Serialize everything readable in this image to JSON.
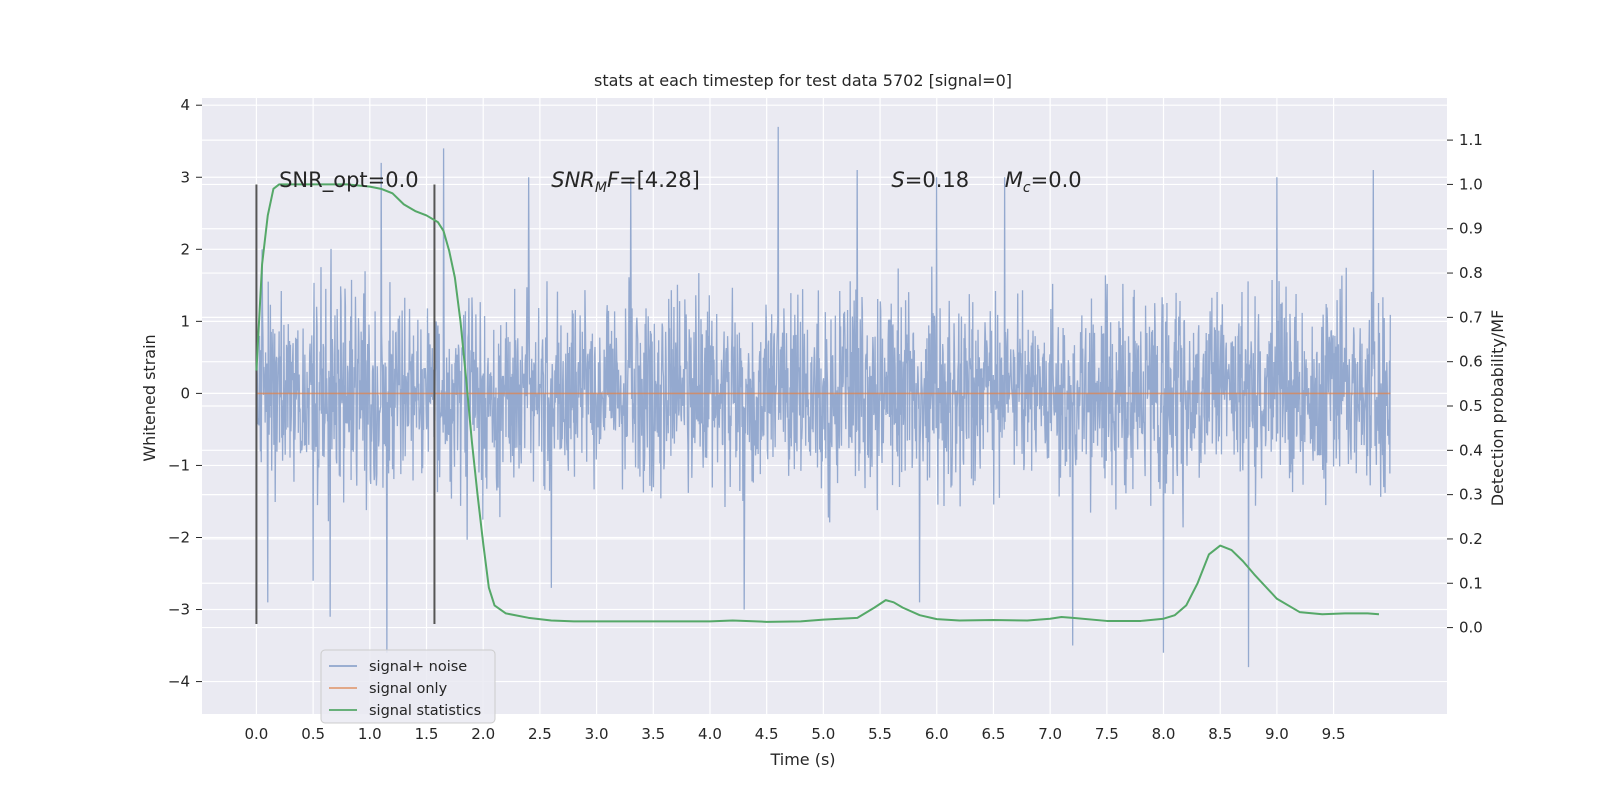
{
  "chart_data": {
    "type": "line",
    "title": "stats at each timestep for test data 5702 [signal=0]",
    "xlabel": "Time (s)",
    "ylabel": "Whitened strain",
    "y2label": "Detection probability/MF",
    "xlim": [
      -0.48,
      10.5
    ],
    "ylim": [
      -4.45,
      4.1
    ],
    "y2lim": [
      -0.195,
      1.195
    ],
    "xticks": [
      "0.0",
      "0.5",
      "1.0",
      "1.5",
      "2.0",
      "2.5",
      "3.0",
      "3.5",
      "4.0",
      "4.5",
      "5.0",
      "5.5",
      "6.0",
      "6.5",
      "7.0",
      "7.5",
      "8.0",
      "8.5",
      "9.0",
      "9.5"
    ],
    "yticks": [
      "−4",
      "−3",
      "−2",
      "−1",
      "0",
      "1",
      "2",
      "3",
      "4"
    ],
    "y2ticks": [
      "0.0",
      "0.1",
      "0.2",
      "0.3",
      "0.4",
      "0.5",
      "0.6",
      "0.7",
      "0.8",
      "0.9",
      "1.0",
      "1.1"
    ],
    "grid": true,
    "legend_position": "lower-left",
    "colors": {
      "background": "#eaeaf2",
      "grid": "#ffffff",
      "noise": "#8fa5cc",
      "signal_only": "#dd8452",
      "statistics": "#55a868",
      "marker": "#555555"
    },
    "series": [
      {
        "name": "signal+ noise",
        "axis": "left",
        "description_level": "noise band spanning roughly -1.5 to 1.7 with spikes up to 3.7 and down to -3.8",
        "x_range": [
          0.0,
          10.0
        ],
        "spikes": [
          [
            0.05,
            2.0
          ],
          [
            0.1,
            -2.9
          ],
          [
            0.5,
            -2.6
          ],
          [
            0.65,
            -3.1
          ],
          [
            1.1,
            3.2
          ],
          [
            1.15,
            -3.6
          ],
          [
            1.65,
            3.4
          ],
          [
            2.4,
            3.0
          ],
          [
            2.6,
            -2.7
          ],
          [
            3.3,
            3.0
          ],
          [
            4.3,
            -3.0
          ],
          [
            4.6,
            3.7
          ],
          [
            5.3,
            3.1
          ],
          [
            5.85,
            -2.9
          ],
          [
            6.0,
            3.0
          ],
          [
            6.6,
            3.0
          ],
          [
            7.2,
            -3.5
          ],
          [
            8.0,
            -3.6
          ],
          [
            8.75,
            -3.8
          ],
          [
            9.0,
            3.0
          ],
          [
            9.85,
            3.1
          ]
        ]
      },
      {
        "name": "signal only",
        "axis": "left",
        "x": [
          0.0,
          10.0
        ],
        "y": [
          0.0,
          0.0
        ]
      },
      {
        "name": "signal statistics",
        "axis": "right",
        "x": [
          0.0,
          0.05,
          0.1,
          0.15,
          0.2,
          0.3,
          0.5,
          0.8,
          1.0,
          1.1,
          1.2,
          1.3,
          1.4,
          1.5,
          1.6,
          1.65,
          1.7,
          1.75,
          1.8,
          1.85,
          1.9,
          1.95,
          2.0,
          2.05,
          2.1,
          2.2,
          2.4,
          2.6,
          2.8,
          3.0,
          3.5,
          4.0,
          4.2,
          4.5,
          4.8,
          5.0,
          5.3,
          5.45,
          5.55,
          5.62,
          5.7,
          5.85,
          6.0,
          6.2,
          6.5,
          6.8,
          7.0,
          7.1,
          7.2,
          7.5,
          7.8,
          8.0,
          8.1,
          8.2,
          8.3,
          8.4,
          8.5,
          8.6,
          8.7,
          8.8,
          9.0,
          9.2,
          9.4,
          9.6,
          9.8,
          9.9
        ],
        "y": [
          0.58,
          0.82,
          0.93,
          0.99,
          1.0,
          1.0,
          1.0,
          1.0,
          0.995,
          0.99,
          0.98,
          0.955,
          0.94,
          0.93,
          0.915,
          0.895,
          0.85,
          0.79,
          0.69,
          0.56,
          0.42,
          0.3,
          0.19,
          0.09,
          0.05,
          0.032,
          0.022,
          0.016,
          0.014,
          0.014,
          0.014,
          0.014,
          0.016,
          0.013,
          0.014,
          0.018,
          0.022,
          0.045,
          0.062,
          0.057,
          0.045,
          0.028,
          0.019,
          0.016,
          0.017,
          0.016,
          0.02,
          0.024,
          0.022,
          0.015,
          0.015,
          0.02,
          0.028,
          0.05,
          0.1,
          0.165,
          0.185,
          0.175,
          0.15,
          0.12,
          0.065,
          0.035,
          0.03,
          0.032,
          0.032,
          0.03
        ]
      }
    ],
    "vertical_markers": [
      {
        "x": 0.0,
        "y": [
          -3.2,
          2.9
        ]
      },
      {
        "x": 1.57,
        "y": [
          -3.2,
          2.9
        ]
      }
    ],
    "annotations": [
      {
        "x": 0.2,
        "y": 2.95,
        "text": "SNR_opt=0.0"
      },
      {
        "x": 2.6,
        "y": 2.95,
        "text": "=[4.28]",
        "math_base": "SNR",
        "math_sub": "M",
        "math_tail": "F"
      },
      {
        "x": 5.6,
        "y": 2.95,
        "text": "=0.18",
        "math_base": "S"
      },
      {
        "x": 6.6,
        "y": 2.95,
        "text": "=0.0",
        "math_base": "M",
        "math_sub": "c"
      }
    ]
  }
}
